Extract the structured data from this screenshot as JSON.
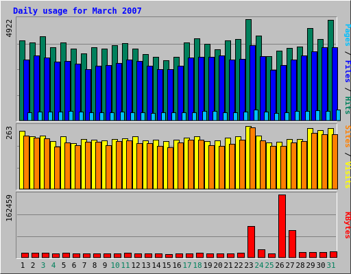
{
  "colors": {
    "hits": "#00805c",
    "files": "#0000ff",
    "pages": "#00c0ff",
    "visits": "#ffff00",
    "sites": "#ff8000",
    "kbytes": "#ff0000",
    "background": "#c0c0c0",
    "title": "#0000ff",
    "weekend_label": "#00805c",
    "weekday_label": "#000000",
    "grid": "#808080"
  },
  "chart_data": [
    {
      "type": "bar",
      "title": "Daily usage for March 2007",
      "ylabel_parts": [
        "Pages",
        "Files",
        "Hits"
      ],
      "ylabel_sep": "/",
      "ytick_label": "4922",
      "ylim": [
        0,
        4922
      ],
      "categories": [
        "1",
        "2",
        "3",
        "4",
        "5",
        "6",
        "7",
        "8",
        "9",
        "10",
        "11",
        "12",
        "13",
        "14",
        "15",
        "16",
        "17",
        "18",
        "19",
        "20",
        "21",
        "22",
        "23",
        "24",
        "25",
        "26",
        "27",
        "28",
        "29",
        "30",
        "31"
      ],
      "series": [
        {
          "name": "Hits",
          "values": [
            3900,
            3800,
            4100,
            3550,
            3800,
            3480,
            3250,
            3550,
            3480,
            3650,
            3750,
            3500,
            3230,
            3080,
            2940,
            3100,
            3780,
            4000,
            3720,
            3450,
            3880,
            3950,
            4920,
            4130,
            3120,
            3400,
            3520,
            3580,
            4480,
            3950,
            4900
          ]
        },
        {
          "name": "Files",
          "values": [
            2950,
            3150,
            3050,
            2850,
            2900,
            2750,
            2500,
            2650,
            2700,
            2800,
            2950,
            2900,
            2650,
            2500,
            2500,
            2650,
            3050,
            3080,
            3100,
            3150,
            2950,
            3000,
            3650,
            3130,
            2450,
            2700,
            2950,
            3150,
            3350,
            3550,
            3550
          ]
        },
        {
          "name": "Pages",
          "values": [
            400,
            430,
            430,
            420,
            470,
            430,
            390,
            400,
            390,
            420,
            410,
            400,
            380,
            400,
            390,
            400,
            410,
            460,
            450,
            390,
            400,
            420,
            520,
            430,
            370,
            390,
            460,
            450,
            490,
            480,
            520
          ]
        }
      ]
    },
    {
      "type": "bar",
      "ylabel_parts": [
        "Sites",
        "Visits"
      ],
      "ylabel_sep": "/",
      "ytick_label": "263",
      "ylim": [
        0,
        263
      ],
      "categories": [
        "1",
        "2",
        "3",
        "4",
        "5",
        "6",
        "7",
        "8",
        "9",
        "10",
        "11",
        "12",
        "13",
        "14",
        "15",
        "16",
        "17",
        "18",
        "19",
        "20",
        "21",
        "22",
        "23",
        "24",
        "25",
        "26",
        "27",
        "28",
        "29",
        "30",
        "31"
      ],
      "series": [
        {
          "name": "Visits",
          "values": [
            243,
            220,
            222,
            199,
            219,
            192,
            209,
            205,
            203,
            209,
            211,
            219,
            202,
            206,
            199,
            207,
            215,
            220,
            199,
            204,
            213,
            221,
            262,
            222,
            195,
            197,
            209,
            208,
            253,
            247,
            253
          ]
        },
        {
          "name": "Sites",
          "values": [
            222,
            214,
            212,
            178,
            195,
            183,
            198,
            196,
            183,
            201,
            203,
            191,
            191,
            180,
            173,
            195,
            206,
            205,
            184,
            181,
            188,
            207,
            258,
            202,
            181,
            181,
            193,
            199,
            233,
            228,
            230
          ]
        }
      ]
    },
    {
      "type": "bar",
      "ylabel_parts": [
        "KBytes"
      ],
      "ytick_label": "162459",
      "ylim": [
        0,
        162459
      ],
      "categories": [
        "1",
        "2",
        "3",
        "4",
        "5",
        "6",
        "7",
        "8",
        "9",
        "10",
        "11",
        "12",
        "13",
        "14",
        "15",
        "16",
        "17",
        "18",
        "19",
        "20",
        "21",
        "22",
        "23",
        "24",
        "25",
        "26",
        "27",
        "28",
        "29",
        "30",
        "31"
      ],
      "weekend_days": [
        3,
        4,
        10,
        11,
        17,
        18,
        24,
        25,
        31
      ],
      "series": [
        {
          "name": "KBytes",
          "values": [
            12300,
            12300,
            12000,
            11000,
            11600,
            11000,
            9800,
            10200,
            10400,
            11300,
            11500,
            10600,
            10100,
            10000,
            9200,
            9800,
            11000,
            12000,
            11200,
            10600,
            10400,
            12900,
            80700,
            21800,
            11400,
            162459,
            70000,
            13400,
            14300,
            14800,
            16000
          ]
        }
      ]
    }
  ]
}
